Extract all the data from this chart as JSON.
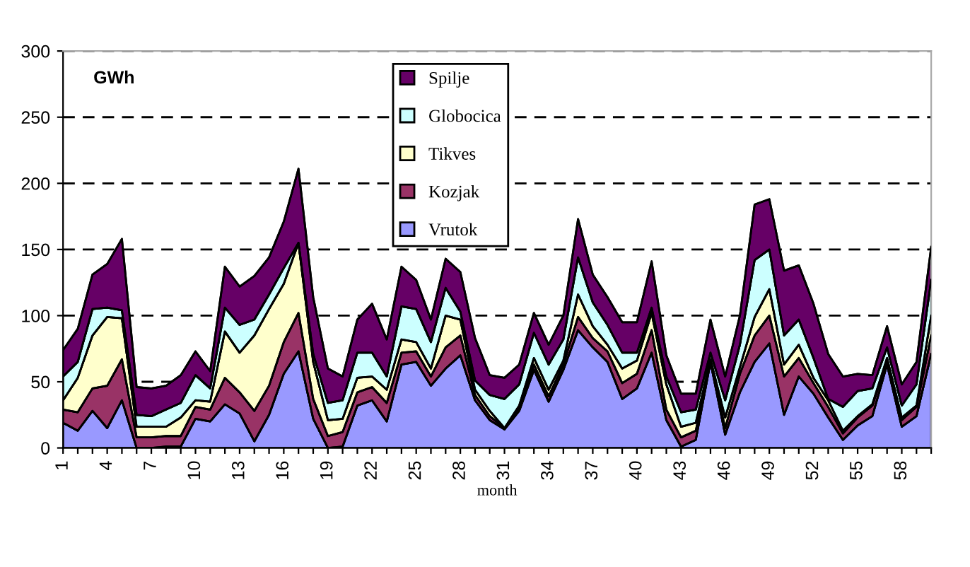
{
  "chart_data": {
    "type": "area",
    "stacked": true,
    "ylabel": "GWh",
    "xlabel": "month",
    "categories": [
      "1",
      null,
      null,
      "4",
      null,
      null,
      "7",
      null,
      null,
      "10",
      null,
      null,
      "13",
      null,
      null,
      "16",
      null,
      null,
      "19",
      null,
      null,
      "22",
      null,
      null,
      "25",
      null,
      null,
      "28",
      null,
      null,
      "31",
      null,
      null,
      "34",
      null,
      null,
      "37",
      null,
      null,
      "40",
      null,
      null,
      "43",
      null,
      null,
      "46",
      null,
      null,
      "49",
      null,
      null,
      "52",
      null,
      null,
      "55",
      null,
      null,
      "58",
      null,
      null
    ],
    "series": [
      {
        "name": "Vrutok",
        "color": "#9999ff",
        "values": [
          19,
          13,
          28,
          15,
          36,
          0,
          0,
          1,
          1,
          22,
          20,
          33,
          26,
          5,
          25,
          56,
          73,
          22,
          0,
          1,
          32,
          36,
          20,
          63,
          65,
          47,
          60,
          70,
          36,
          21,
          14,
          28,
          59,
          35,
          59,
          89,
          76,
          65,
          37,
          45,
          72,
          21,
          1,
          6,
          65,
          10,
          42,
          65,
          79,
          25,
          54,
          41,
          23,
          6,
          17,
          24,
          63,
          16,
          24,
          71
        ]
      },
      {
        "name": "Kozjak",
        "color": "#993366",
        "values": [
          10,
          14,
          17,
          32,
          31,
          8,
          8,
          8,
          8,
          9,
          9,
          20,
          16,
          23,
          22,
          24,
          29,
          15,
          9,
          11,
          10,
          10,
          14,
          9,
          8,
          7,
          16,
          15,
          4,
          3,
          1,
          2,
          4,
          4,
          4,
          10,
          7,
          8,
          12,
          11,
          17,
          8,
          7,
          7,
          0,
          5,
          14,
          20,
          21,
          29,
          14,
          8,
          8,
          5,
          6,
          8,
          3,
          5,
          7,
          14
        ]
      },
      {
        "name": "Tikves",
        "color": "#ffffcc",
        "values": [
          7,
          26,
          40,
          52,
          31,
          8,
          8,
          7,
          14,
          5,
          6,
          35,
          30,
          57,
          58,
          44,
          53,
          28,
          12,
          10,
          11,
          8,
          10,
          10,
          7,
          6,
          24,
          12,
          4,
          4,
          0,
          2,
          5,
          5,
          3,
          17,
          9,
          5,
          11,
          10,
          13,
          19,
          8,
          6,
          2,
          8,
          5,
          14,
          20,
          9,
          10,
          4,
          5,
          2,
          1,
          1,
          2,
          2,
          1,
          15
        ]
      },
      {
        "name": "Globocica",
        "color": "#ccffff",
        "values": [
          18,
          12,
          20,
          7,
          6,
          9,
          8,
          13,
          11,
          19,
          10,
          18,
          21,
          12,
          11,
          12,
          0,
          6,
          13,
          14,
          19,
          18,
          10,
          25,
          25,
          20,
          21,
          6,
          7,
          12,
          22,
          16,
          19,
          19,
          16,
          28,
          18,
          15,
          12,
          6,
          4,
          6,
          11,
          10,
          5,
          13,
          17,
          43,
          30,
          22,
          19,
          15,
          1,
          18,
          19,
          12,
          8,
          9,
          16,
          27
        ]
      },
      {
        "name": "Spilje",
        "color": "#660066",
        "values": [
          20,
          25,
          26,
          33,
          54,
          21,
          21,
          18,
          21,
          18,
          13,
          31,
          29,
          33,
          28,
          35,
          56,
          43,
          26,
          18,
          25,
          37,
          28,
          30,
          22,
          17,
          22,
          30,
          32,
          15,
          16,
          15,
          15,
          15,
          18,
          29,
          21,
          21,
          23,
          23,
          35,
          16,
          14,
          12,
          25,
          18,
          22,
          42,
          38,
          49,
          41,
          41,
          34,
          23,
          13,
          10,
          16,
          16,
          17,
          25
        ]
      }
    ],
    "ylim": [
      0,
      300
    ],
    "yticks": [
      0,
      50,
      100,
      150,
      200,
      250,
      300
    ],
    "grid": "y",
    "legend": "top"
  }
}
